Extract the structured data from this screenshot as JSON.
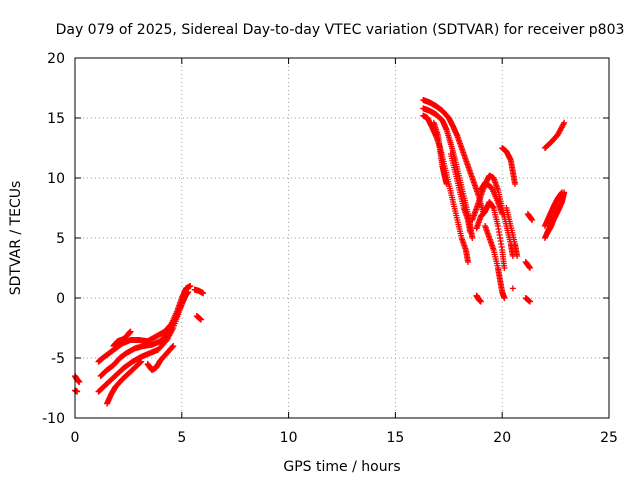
{
  "chart_data": {
    "type": "scatter",
    "title": "Day 079 of 2025, Sidereal Day-to-day VTEC variation (SDTVAR) for receiver p803",
    "xlabel": "GPS time / hours",
    "ylabel": "SDTVAR / TECUs",
    "xlim": [
      0,
      25
    ],
    "ylim": [
      -10,
      20
    ],
    "xticks": [
      0,
      5,
      10,
      15,
      20,
      25
    ],
    "yticks": [
      -10,
      -5,
      0,
      5,
      10,
      15,
      20
    ],
    "xtick_labels": [
      "0",
      "5",
      "10",
      "15",
      "20",
      "25"
    ],
    "ytick_labels": [
      "-10",
      "-5",
      "0",
      "5",
      "10",
      "15",
      "20"
    ],
    "grid": true,
    "legend": "none",
    "marker": "+",
    "color": "#ff0000",
    "series_tracks": [
      [
        [
          0.0,
          -6.5
        ],
        [
          0.1,
          -6.8
        ],
        [
          0.2,
          -7.0
        ]
      ],
      [
        [
          0.0,
          -7.7
        ],
        [
          0.1,
          -7.8
        ]
      ],
      [
        [
          1.1,
          -5.3
        ],
        [
          1.3,
          -5.0
        ],
        [
          1.6,
          -4.6
        ],
        [
          1.9,
          -4.2
        ],
        [
          2.2,
          -3.8
        ],
        [
          2.6,
          -3.5
        ],
        [
          3.0,
          -3.5
        ],
        [
          3.4,
          -3.6
        ],
        [
          3.8,
          -3.2
        ],
        [
          4.2,
          -2.8
        ],
        [
          4.5,
          -2.2
        ],
        [
          4.8,
          -1.0
        ],
        [
          5.0,
          0.0
        ],
        [
          5.2,
          0.8
        ],
        [
          5.4,
          1.0
        ]
      ],
      [
        [
          1.1,
          -7.8
        ],
        [
          1.4,
          -7.3
        ],
        [
          1.7,
          -6.8
        ],
        [
          2.0,
          -6.3
        ],
        [
          2.3,
          -5.8
        ],
        [
          2.7,
          -5.3
        ],
        [
          3.1,
          -4.9
        ],
        [
          3.5,
          -4.6
        ],
        [
          3.9,
          -4.3
        ],
        [
          4.3,
          -3.5
        ],
        [
          4.6,
          -2.5
        ],
        [
          4.9,
          -1.0
        ],
        [
          5.1,
          0.0
        ],
        [
          5.3,
          0.5
        ]
      ],
      [
        [
          1.2,
          -6.5
        ],
        [
          1.5,
          -6.0
        ],
        [
          1.8,
          -5.6
        ],
        [
          2.1,
          -5.0
        ],
        [
          2.4,
          -4.6
        ],
        [
          2.8,
          -4.2
        ],
        [
          3.2,
          -4.0
        ],
        [
          3.6,
          -3.9
        ],
        [
          4.0,
          -3.6
        ],
        [
          4.4,
          -2.8
        ],
        [
          4.7,
          -1.8
        ],
        [
          5.0,
          -0.5
        ],
        [
          5.2,
          0.3
        ]
      ],
      [
        [
          1.5,
          -8.8
        ],
        [
          1.7,
          -8.0
        ],
        [
          1.9,
          -7.4
        ],
        [
          2.2,
          -6.8
        ],
        [
          2.5,
          -6.3
        ],
        [
          2.8,
          -5.8
        ],
        [
          3.1,
          -5.3
        ]
      ],
      [
        [
          1.8,
          -4.0
        ],
        [
          2.0,
          -3.6
        ],
        [
          2.3,
          -3.4
        ],
        [
          2.5,
          -3.0
        ],
        [
          2.6,
          -2.8
        ]
      ],
      [
        [
          3.4,
          -5.5
        ],
        [
          3.6,
          -6.0
        ],
        [
          3.8,
          -5.8
        ],
        [
          4.0,
          -5.2
        ],
        [
          4.3,
          -4.6
        ],
        [
          4.6,
          -4.0
        ]
      ],
      [
        [
          5.6,
          0.7
        ],
        [
          5.8,
          0.6
        ],
        [
          6.0,
          0.4
        ]
      ],
      [
        [
          5.7,
          -1.5
        ],
        [
          5.9,
          -1.8
        ]
      ],
      [
        [
          16.3,
          16.5
        ],
        [
          16.6,
          16.3
        ],
        [
          16.9,
          16.0
        ],
        [
          17.2,
          15.6
        ],
        [
          17.5,
          15.0
        ],
        [
          17.7,
          14.3
        ],
        [
          17.9,
          13.5
        ],
        [
          18.1,
          12.5
        ],
        [
          18.3,
          11.5
        ],
        [
          18.5,
          10.5
        ],
        [
          18.7,
          9.5
        ],
        [
          18.9,
          8.5
        ],
        [
          19.1,
          7.2
        ]
      ],
      [
        [
          16.3,
          15.8
        ],
        [
          16.6,
          15.6
        ],
        [
          16.9,
          15.3
        ],
        [
          17.2,
          14.8
        ],
        [
          17.4,
          14.0
        ],
        [
          17.6,
          12.8
        ],
        [
          17.8,
          11.5
        ],
        [
          18.0,
          10.0
        ],
        [
          18.2,
          8.5
        ],
        [
          18.4,
          7.0
        ],
        [
          18.5,
          6.0
        ],
        [
          18.6,
          5.0
        ]
      ],
      [
        [
          16.3,
          15.2
        ],
        [
          16.5,
          15.0
        ],
        [
          16.7,
          14.3
        ],
        [
          16.9,
          13.5
        ],
        [
          17.1,
          12.5
        ],
        [
          17.3,
          11.0
        ],
        [
          17.5,
          9.5
        ],
        [
          17.7,
          8.0
        ],
        [
          17.9,
          6.5
        ],
        [
          18.1,
          5.0
        ],
        [
          18.3,
          4.0
        ],
        [
          18.4,
          3.0
        ]
      ],
      [
        [
          16.8,
          14.6
        ],
        [
          17.0,
          13.5
        ],
        [
          17.1,
          12.2
        ],
        [
          17.2,
          11.0
        ],
        [
          17.3,
          10.2
        ],
        [
          17.4,
          9.5
        ]
      ],
      [
        [
          17.6,
          12.0
        ],
        [
          17.8,
          10.5
        ],
        [
          18.0,
          9.0
        ],
        [
          18.2,
          7.5
        ],
        [
          18.4,
          6.5
        ],
        [
          18.5,
          5.5
        ]
      ],
      [
        [
          18.8,
          0.2
        ],
        [
          18.9,
          -0.1
        ],
        [
          19.0,
          -0.3
        ]
      ],
      [
        [
          18.6,
          6.5
        ],
        [
          18.8,
          7.5
        ],
        [
          19.0,
          8.5
        ],
        [
          19.2,
          9.5
        ],
        [
          19.4,
          10.2
        ],
        [
          19.6,
          10.0
        ],
        [
          19.8,
          9.0
        ],
        [
          20.0,
          7.5
        ],
        [
          20.2,
          6.0
        ],
        [
          20.4,
          4.5
        ],
        [
          20.5,
          3.5
        ]
      ],
      [
        [
          18.8,
          5.8
        ],
        [
          19.0,
          6.8
        ],
        [
          19.2,
          7.2
        ],
        [
          19.4,
          8.0
        ],
        [
          19.6,
          7.5
        ],
        [
          19.8,
          6.0
        ],
        [
          20.0,
          4.0
        ],
        [
          20.1,
          2.5
        ]
      ],
      [
        [
          19.0,
          9.0
        ],
        [
          19.2,
          9.6
        ],
        [
          19.5,
          9.2
        ],
        [
          19.8,
          8.0
        ],
        [
          20.0,
          7.0
        ]
      ],
      [
        [
          19.2,
          6.0
        ],
        [
          19.4,
          5.0
        ],
        [
          19.6,
          4.0
        ],
        [
          19.8,
          2.5
        ],
        [
          19.9,
          1.5
        ],
        [
          20.0,
          0.5
        ],
        [
          20.1,
          0.0
        ]
      ],
      [
        [
          20.0,
          12.5
        ],
        [
          20.2,
          12.2
        ],
        [
          20.4,
          11.5
        ],
        [
          20.5,
          10.5
        ],
        [
          20.6,
          9.5
        ]
      ],
      [
        [
          20.2,
          7.5
        ],
        [
          20.4,
          6.0
        ],
        [
          20.6,
          4.5
        ],
        [
          20.7,
          3.5
        ]
      ],
      [
        [
          20.5,
          0.8
        ]
      ],
      [
        [
          21.2,
          7.0
        ],
        [
          21.4,
          6.5
        ]
      ],
      [
        [
          21.1,
          3.0
        ],
        [
          21.3,
          2.5
        ]
      ],
      [
        [
          21.1,
          0.0
        ],
        [
          21.3,
          -0.3
        ]
      ],
      [
        [
          22.0,
          12.5
        ],
        [
          22.3,
          13.0
        ],
        [
          22.6,
          13.6
        ],
        [
          22.9,
          14.6
        ]
      ],
      [
        [
          22.0,
          5.0
        ],
        [
          22.2,
          5.8
        ],
        [
          22.4,
          6.5
        ],
        [
          22.6,
          7.2
        ],
        [
          22.8,
          8.0
        ],
        [
          22.9,
          8.8
        ]
      ],
      [
        [
          22.0,
          6.0
        ],
        [
          22.2,
          6.8
        ],
        [
          22.4,
          7.6
        ],
        [
          22.6,
          8.3
        ],
        [
          22.8,
          8.8
        ]
      ],
      [
        [
          22.1,
          5.4
        ],
        [
          22.3,
          6.0
        ],
        [
          22.5,
          7.0
        ],
        [
          22.7,
          7.8
        ]
      ]
    ]
  }
}
